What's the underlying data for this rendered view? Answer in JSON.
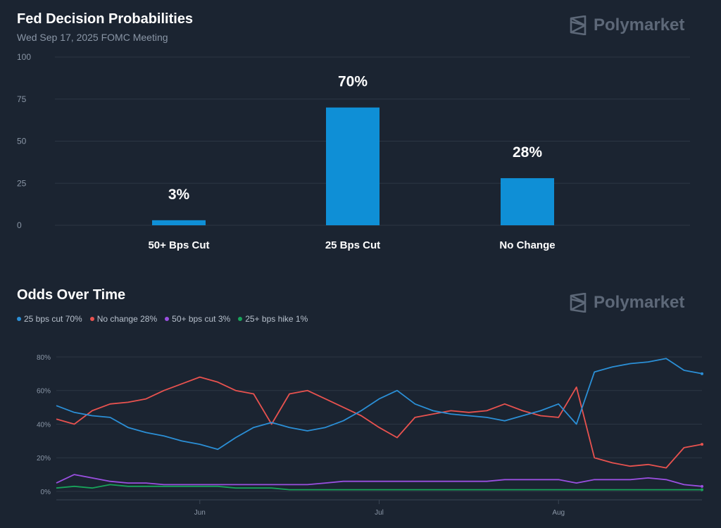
{
  "header": {
    "title": "Fed Decision Probabilities",
    "subtitle": "Wed Sep 17, 2025 FOMC Meeting",
    "brand": "Polymarket"
  },
  "bar_section": {
    "y_ticks": [
      "100",
      "75",
      "50",
      "25",
      "0"
    ]
  },
  "line_section": {
    "title": "Odds Over Time",
    "brand": "Polymarket",
    "legend": [
      {
        "label": "25 bps cut 70%",
        "color": "#2b8fd6"
      },
      {
        "label": "No change 28%",
        "color": "#e8524f"
      },
      {
        "label": "50+ bps cut 3%",
        "color": "#9a4fe0"
      },
      {
        "label": "25+ bps hike 1%",
        "color": "#18a35a"
      }
    ],
    "y_ticks": [
      "80%",
      "60%",
      "40%",
      "20%",
      "0%"
    ],
    "x_ticks": [
      "Jun",
      "Jul",
      "Aug"
    ]
  },
  "chart_data": [
    {
      "type": "bar",
      "title": "Fed Decision Probabilities",
      "subtitle": "Wed Sep 17, 2025 FOMC Meeting",
      "categories": [
        "50+ Bps Cut",
        "25 Bps Cut",
        "No Change"
      ],
      "values": [
        3,
        70,
        28
      ],
      "value_labels": [
        "3%",
        "70%",
        "28%"
      ],
      "ylim": [
        0,
        100
      ],
      "color": "#0f8fd6",
      "grid": true
    },
    {
      "type": "line",
      "title": "Odds Over Time",
      "x": [
        "May 8",
        "May 11",
        "May 14",
        "May 17",
        "May 20",
        "May 23",
        "May 26",
        "May 29",
        "Jun 1",
        "Jun 4",
        "Jun 7",
        "Jun 10",
        "Jun 13",
        "Jun 16",
        "Jun 19",
        "Jun 22",
        "Jun 25",
        "Jun 28",
        "Jul 1",
        "Jul 4",
        "Jul 7",
        "Jul 10",
        "Jul 13",
        "Jul 16",
        "Jul 19",
        "Jul 22",
        "Jul 25",
        "Jul 28",
        "Jul 31",
        "Aug 3",
        "Aug 6",
        "Aug 9",
        "Aug 12",
        "Aug 15",
        "Aug 18",
        "Aug 21",
        "Aug 24"
      ],
      "ylim": [
        0,
        85
      ],
      "y_unit": "%",
      "grid": true,
      "legend_position": "top-left",
      "series": [
        {
          "name": "25 bps cut 70%",
          "color": "#2b8fd6",
          "values": [
            51,
            47,
            45,
            44,
            38,
            35,
            33,
            30,
            28,
            25,
            32,
            38,
            41,
            38,
            36,
            38,
            42,
            48,
            55,
            60,
            52,
            48,
            46,
            45,
            44,
            42,
            45,
            48,
            52,
            40,
            71,
            74,
            76,
            77,
            79,
            72,
            70
          ]
        },
        {
          "name": "No change 28%",
          "color": "#e8524f",
          "values": [
            43,
            40,
            48,
            52,
            53,
            55,
            60,
            64,
            68,
            65,
            60,
            58,
            40,
            58,
            60,
            55,
            50,
            45,
            38,
            32,
            44,
            46,
            48,
            47,
            48,
            52,
            48,
            45,
            44,
            62,
            20,
            17,
            15,
            16,
            14,
            26,
            28
          ]
        },
        {
          "name": "50+ bps cut 3%",
          "color": "#9a4fe0",
          "values": [
            5,
            10,
            8,
            6,
            5,
            5,
            4,
            4,
            4,
            4,
            4,
            4,
            4,
            4,
            4,
            5,
            6,
            6,
            6,
            6,
            6,
            6,
            6,
            6,
            6,
            7,
            7,
            7,
            7,
            5,
            7,
            7,
            7,
            8,
            7,
            4,
            3
          ]
        },
        {
          "name": "25+ bps hike 1%",
          "color": "#18a35a",
          "values": [
            2,
            3,
            2,
            4,
            3,
            3,
            3,
            3,
            3,
            3,
            2,
            2,
            2,
            1,
            1,
            1,
            1,
            1,
            1,
            1,
            1,
            1,
            1,
            1,
            1,
            1,
            1,
            1,
            1,
            1,
            1,
            1,
            1,
            1,
            1,
            1,
            1
          ]
        }
      ]
    }
  ]
}
